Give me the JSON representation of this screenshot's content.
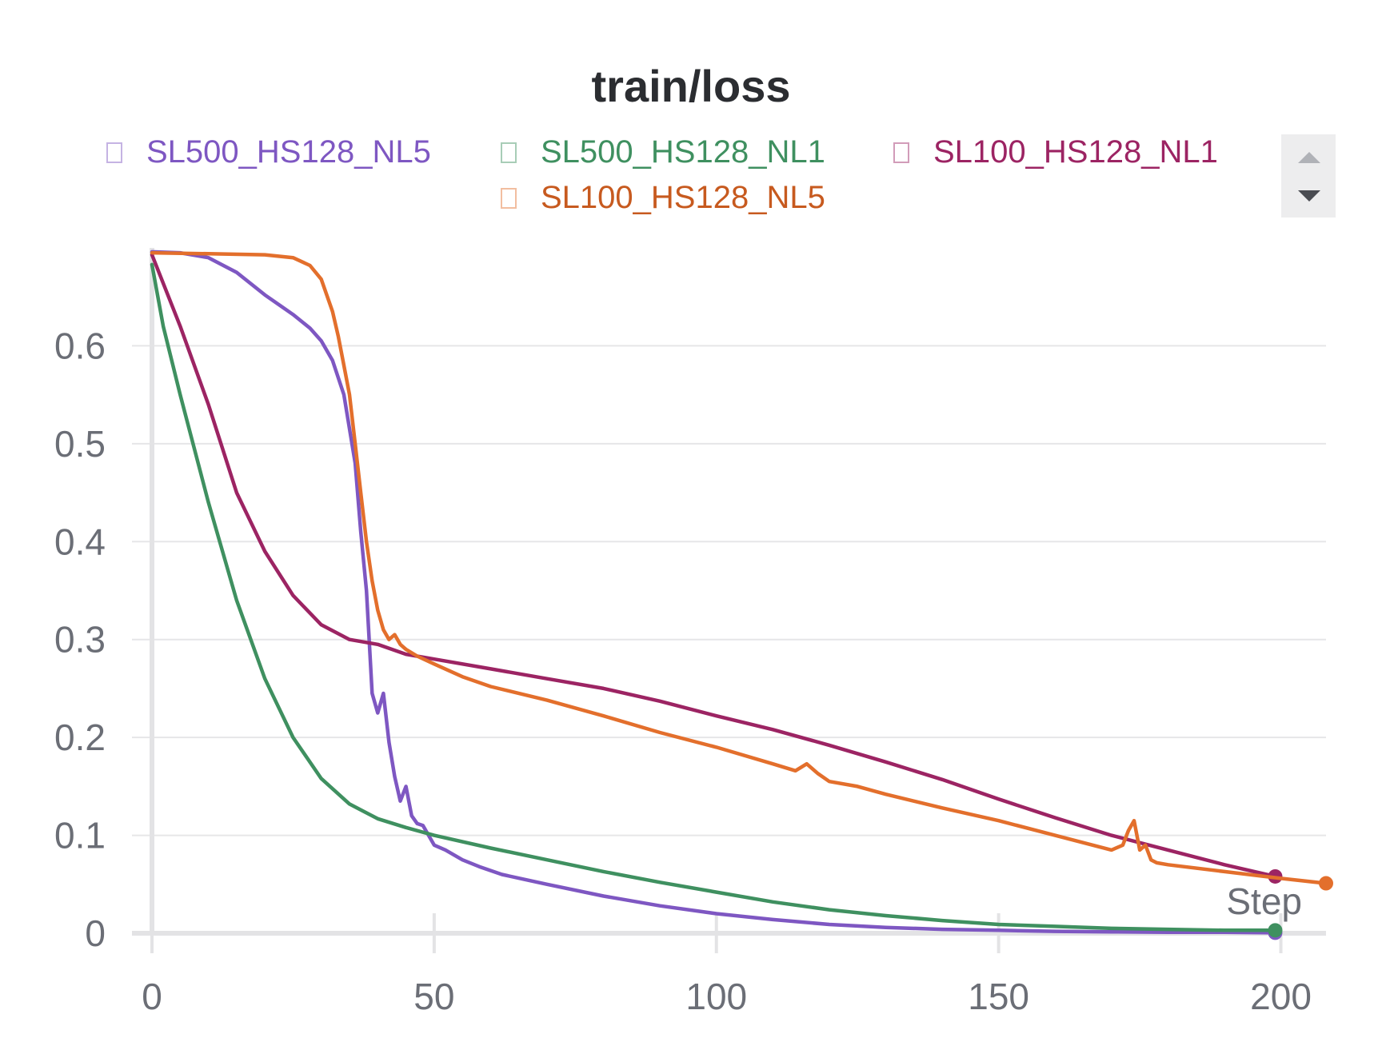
{
  "chart_data": {
    "type": "line",
    "title": "train/loss",
    "xlabel": "Step",
    "ylabel": "",
    "xlim": [
      0,
      208
    ],
    "ylim": [
      0,
      0.7
    ],
    "xticks": [
      0,
      50,
      100,
      150,
      200
    ],
    "xtick_labels": [
      "0",
      "50",
      "100",
      "150",
      "200"
    ],
    "yticks": [
      0,
      0.1,
      0.2,
      0.3,
      0.4,
      0.5,
      0.6
    ],
    "ytick_labels": [
      "0",
      "0.1",
      "0.2",
      "0.3",
      "0.4",
      "0.5",
      "0.6"
    ],
    "grid": true,
    "legend_position": "top",
    "series": [
      {
        "name": "SL500_HS128_NL5",
        "color": "#7e57c2",
        "x": [
          0,
          5,
          10,
          15,
          20,
          25,
          28,
          30,
          32,
          34,
          36,
          37,
          38,
          39,
          40,
          41,
          42,
          43,
          44,
          45,
          46,
          47,
          48,
          50,
          52,
          55,
          58,
          62,
          66,
          70,
          80,
          90,
          100,
          110,
          120,
          130,
          140,
          150,
          160,
          170,
          180,
          190,
          199
        ],
        "y": [
          0.696,
          0.695,
          0.69,
          0.675,
          0.652,
          0.632,
          0.618,
          0.605,
          0.585,
          0.55,
          0.48,
          0.41,
          0.35,
          0.245,
          0.225,
          0.245,
          0.195,
          0.16,
          0.135,
          0.15,
          0.12,
          0.112,
          0.11,
          0.09,
          0.085,
          0.075,
          0.068,
          0.06,
          0.055,
          0.05,
          0.038,
          0.028,
          0.02,
          0.014,
          0.009,
          0.006,
          0.004,
          0.003,
          0.002,
          0.0015,
          0.001,
          0.001,
          0.0005
        ]
      },
      {
        "name": "SL500_HS128_NL1",
        "color": "#3f9060",
        "x": [
          0,
          2,
          5,
          10,
          15,
          20,
          25,
          30,
          35,
          40,
          45,
          50,
          60,
          70,
          80,
          90,
          100,
          110,
          120,
          130,
          140,
          150,
          160,
          170,
          180,
          190,
          199
        ],
        "y": [
          0.683,
          0.62,
          0.55,
          0.44,
          0.34,
          0.26,
          0.2,
          0.158,
          0.132,
          0.117,
          0.108,
          0.1,
          0.087,
          0.075,
          0.063,
          0.052,
          0.042,
          0.032,
          0.024,
          0.018,
          0.013,
          0.009,
          0.007,
          0.005,
          0.004,
          0.003,
          0.003
        ]
      },
      {
        "name": "SL100_HS128_NL1",
        "color": "#9c2463",
        "x": [
          0,
          5,
          10,
          15,
          20,
          25,
          30,
          35,
          40,
          45,
          50,
          60,
          70,
          80,
          90,
          100,
          110,
          120,
          130,
          140,
          150,
          160,
          170,
          180,
          190,
          199
        ],
        "y": [
          0.693,
          0.62,
          0.54,
          0.45,
          0.39,
          0.345,
          0.315,
          0.3,
          0.295,
          0.285,
          0.28,
          0.27,
          0.26,
          0.25,
          0.237,
          0.222,
          0.208,
          0.192,
          0.175,
          0.157,
          0.137,
          0.118,
          0.1,
          0.085,
          0.07,
          0.058
        ]
      },
      {
        "name": "SL100_HS128_NL5",
        "color": "#e36f2c",
        "x": [
          0,
          10,
          20,
          25,
          28,
          30,
          32,
          33,
          34,
          35,
          36,
          37,
          38,
          39,
          40,
          41,
          42,
          43,
          44,
          45,
          47,
          50,
          55,
          60,
          70,
          80,
          90,
          100,
          110,
          114,
          116,
          118,
          120,
          125,
          130,
          140,
          150,
          160,
          170,
          172,
          173,
          174,
          175,
          176,
          177,
          178,
          180,
          190,
          200,
          208
        ],
        "y": [
          0.695,
          0.694,
          0.693,
          0.69,
          0.682,
          0.668,
          0.635,
          0.61,
          0.58,
          0.55,
          0.5,
          0.45,
          0.4,
          0.36,
          0.33,
          0.31,
          0.3,
          0.305,
          0.295,
          0.29,
          0.283,
          0.275,
          0.262,
          0.252,
          0.238,
          0.222,
          0.205,
          0.19,
          0.173,
          0.166,
          0.173,
          0.163,
          0.155,
          0.15,
          0.142,
          0.128,
          0.115,
          0.1,
          0.085,
          0.09,
          0.105,
          0.115,
          0.085,
          0.09,
          0.075,
          0.072,
          0.07,
          0.063,
          0.056,
          0.051
        ]
      }
    ]
  }
}
